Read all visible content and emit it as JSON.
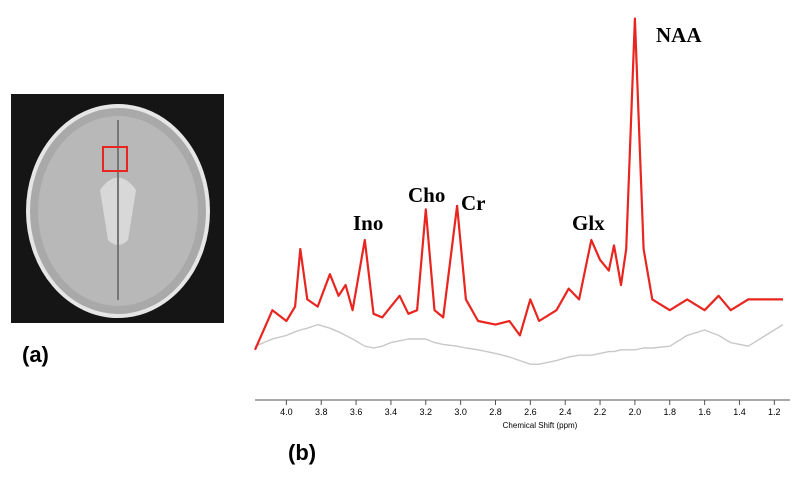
{
  "panels": [
    "(a)",
    "(b)"
  ],
  "chart_data": {
    "type": "line",
    "xlabel": "Chemical Shift (ppm)",
    "annotations": [
      "NAA",
      "Cr",
      "Cho",
      "Ino",
      "Glx"
    ],
    "xlim": [
      4.18,
      1.11
    ],
    "ylim": [
      0,
      100
    ],
    "xticks": [
      {
        "value": 4,
        "label": "4.0"
      },
      3.8,
      3.6,
      3.4,
      3.2,
      {
        "value": 3,
        "label": "3.0"
      },
      2.8,
      2.6,
      2.4,
      2.2,
      {
        "value": 2,
        "label": "2.0"
      },
      1.8,
      1.6,
      1.4,
      1.2
    ],
    "x": [
      4.18,
      4.08,
      4.0,
      3.95,
      3.92,
      3.88,
      3.82,
      3.75,
      3.7,
      3.66,
      3.62,
      3.55,
      3.5,
      3.45,
      3.4,
      3.35,
      3.3,
      3.25,
      3.2,
      3.15,
      3.1,
      3.02,
      2.97,
      2.9,
      2.8,
      2.72,
      2.66,
      2.6,
      2.55,
      2.45,
      2.38,
      2.32,
      2.25,
      2.2,
      2.15,
      2.12,
      2.08,
      2.05,
      2.0,
      1.95,
      1.9,
      1.8,
      1.7,
      1.6,
      1.52,
      1.45,
      1.35,
      1.25,
      1.15
    ],
    "series": [
      {
        "color": "#e8251f",
        "values": [
          7,
          18,
          15,
          19,
          35,
          21,
          19,
          28,
          22,
          25,
          18,
          37.5,
          17,
          16,
          19,
          22,
          17,
          18,
          46,
          18,
          16,
          47,
          21,
          15,
          14,
          15,
          11,
          21,
          15,
          18,
          24,
          21,
          37.5,
          32,
          29,
          36,
          25,
          35,
          99,
          35,
          21,
          18,
          21,
          18,
          22,
          18,
          21,
          21,
          21
        ]
      },
      {
        "color": "#c8c8c8",
        "values": [
          8,
          10,
          11,
          12,
          12.5,
          13,
          14,
          13,
          12,
          11,
          10,
          8,
          7.5,
          8,
          9,
          9.5,
          10,
          10,
          10,
          9,
          8.5,
          8,
          7.5,
          7,
          6,
          5,
          4,
          3,
          3,
          4,
          5,
          5.5,
          5.5,
          6,
          6.5,
          6.5,
          7,
          7,
          7,
          7.5,
          7.5,
          8,
          11,
          12.5,
          11,
          9,
          8,
          11,
          14
        ]
      }
    ]
  }
}
